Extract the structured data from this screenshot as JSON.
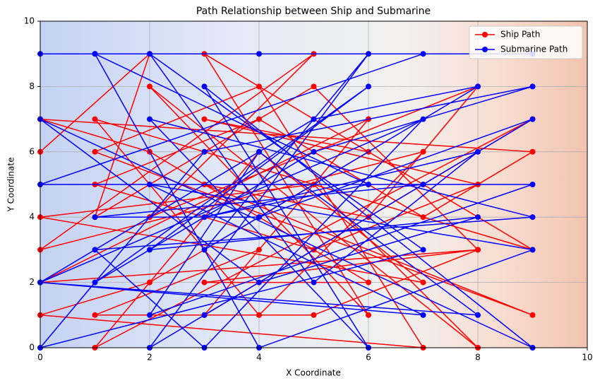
{
  "chart_data": {
    "type": "line",
    "title": "Path Relationship between Ship and Submarine",
    "x_label": "X Coordinate",
    "y_label": "Y Coordinate",
    "xlim": [
      0,
      10
    ],
    "ylim": [
      0,
      10
    ],
    "xticks": [
      0,
      2,
      4,
      6,
      8,
      10
    ],
    "yticks": [
      0,
      2,
      4,
      6,
      8,
      10
    ],
    "grid": true,
    "legend": "upper right",
    "series": [
      {
        "name": "Ship Path",
        "color": "#ff0000",
        "x": [
          0,
          2,
          1,
          5,
          8,
          0,
          6,
          3,
          9,
          1,
          4,
          7,
          0,
          5,
          8,
          2,
          6,
          3,
          9,
          1,
          4,
          7,
          0,
          5,
          2,
          8,
          6,
          3,
          9,
          1,
          4,
          7,
          0,
          2,
          6,
          3,
          8,
          5,
          1,
          4,
          7,
          9,
          0,
          2,
          6,
          3,
          8,
          5,
          1,
          4
        ],
        "values": [
          6,
          9,
          4,
          8,
          3,
          2,
          7,
          1,
          7,
          0,
          6,
          2,
          4,
          5,
          0,
          8,
          1,
          9,
          3,
          7,
          1,
          6,
          3,
          9,
          4,
          8,
          4,
          5,
          1,
          6,
          8,
          0,
          1,
          2,
          6,
          7,
          5,
          3,
          5,
          7,
          4,
          6,
          7,
          6,
          2,
          2,
          3,
          1,
          1,
          3
        ]
      },
      {
        "name": "Submarine Path",
        "color": "#0000ff",
        "x": [
          0,
          9,
          1,
          4,
          7,
          0,
          9,
          2,
          4,
          8,
          0,
          7,
          3,
          1,
          9,
          2,
          6,
          3,
          9,
          0,
          4,
          8,
          2,
          6,
          1,
          5,
          9,
          3,
          0,
          7,
          2,
          5,
          8,
          3,
          6,
          1,
          4,
          9,
          2,
          7,
          0,
          5,
          8,
          3,
          6,
          2,
          9,
          4,
          1,
          7,
          3
        ],
        "values": [
          9,
          9,
          9,
          9,
          9,
          5,
          5,
          1,
          6,
          1,
          2,
          7,
          0,
          3,
          4,
          7,
          0,
          8,
          0,
          7,
          2,
          4,
          3,
          8,
          2,
          6,
          8,
          6,
          0,
          3,
          9,
          2,
          6,
          4,
          5,
          9,
          0,
          3,
          5,
          1,
          2,
          7,
          8,
          3,
          9,
          0,
          7,
          4,
          4,
          5,
          1
        ]
      }
    ]
  }
}
